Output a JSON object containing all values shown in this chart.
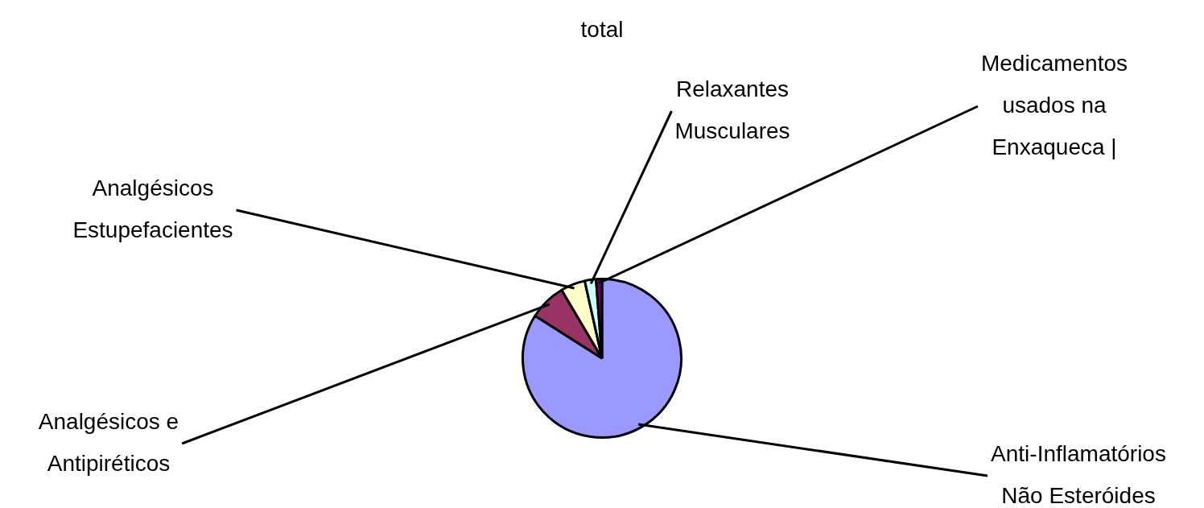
{
  "chart_data": {
    "type": "pie",
    "title": "total",
    "categories": [
      "Anti-Inflamatórios Não Esteróides",
      "Analgésicos e Antipiréticos",
      "Analgésicos Estupefacientes",
      "Relaxantes Musculares",
      "Medicamentos usados na Enxaqueca |"
    ],
    "values": [
      84,
      7.5,
      5,
      2.3,
      1.2
    ],
    "colors": [
      "#9999ff",
      "#993366",
      "#ffffcc",
      "#ccffff",
      "#660066"
    ],
    "legend": false
  }
}
